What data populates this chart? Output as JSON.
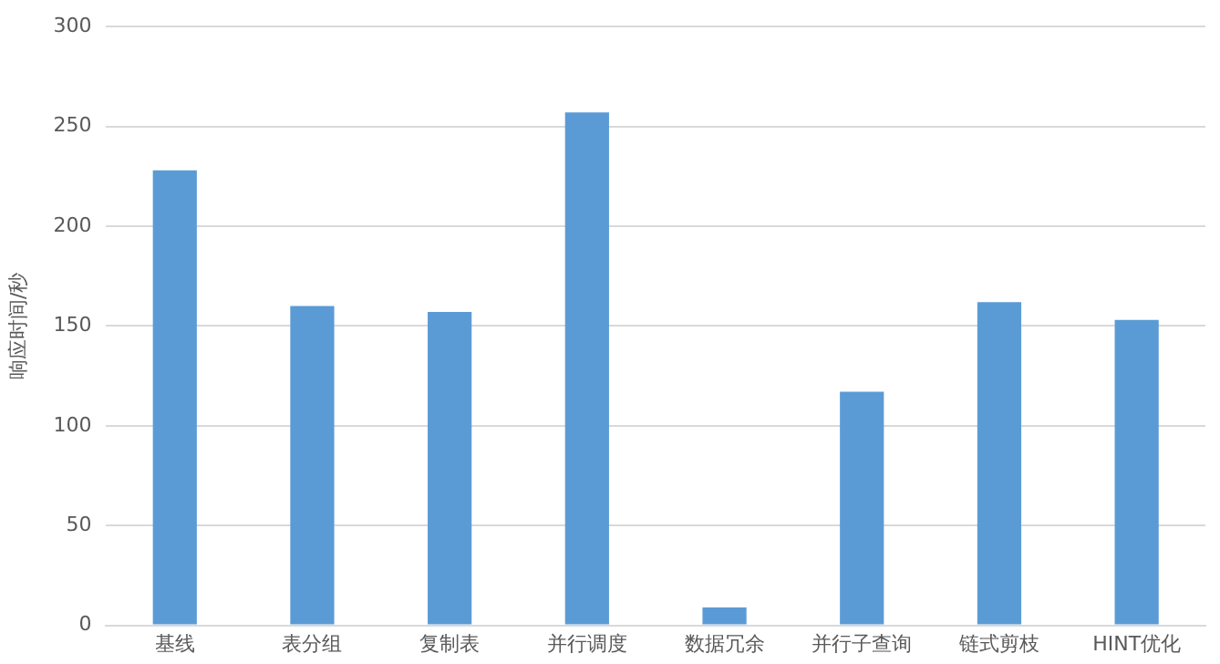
{
  "chart_data": {
    "type": "bar",
    "ylabel": "响应时间/秒",
    "categories": [
      "基线",
      "表分组",
      "复制表",
      "并行调度",
      "数据冗余",
      "并行子查询",
      "链式剪枝",
      "HINT优化"
    ],
    "values": [
      228,
      160,
      157,
      257,
      9,
      117,
      162,
      153
    ],
    "color": "#5b9bd5",
    "ylim": [
      0,
      300
    ],
    "yticks": [
      0,
      50,
      100,
      150,
      200,
      250,
      300
    ],
    "grid": "y",
    "legend": false
  }
}
